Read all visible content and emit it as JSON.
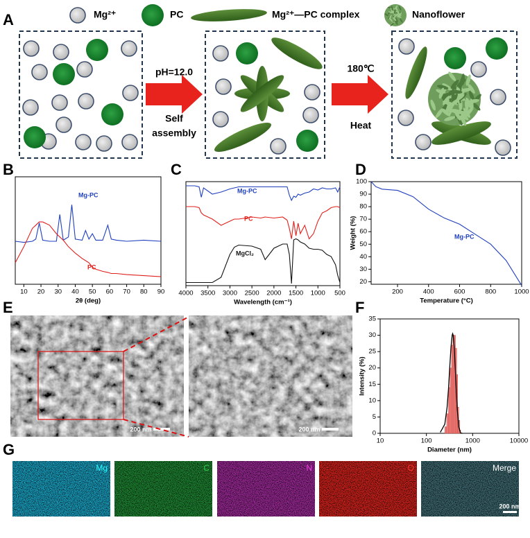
{
  "panels": [
    "A",
    "B",
    "C",
    "D",
    "E",
    "F",
    "G"
  ],
  "schematic": {
    "legend": [
      "Mg²⁺",
      "PC",
      "Mg²⁺—PC complex",
      "Nanoflower"
    ],
    "step1": [
      "pH=12.0",
      "Self",
      "assembly"
    ],
    "step2": [
      "180℃",
      "Heat"
    ]
  },
  "chart_data": [
    {
      "type": "line",
      "xlabel": "2θ (deg)",
      "x": [
        5,
        10,
        15,
        17,
        19,
        21,
        25,
        29,
        31,
        33,
        36,
        38,
        40,
        44,
        46,
        48,
        50,
        52,
        56,
        59,
        61,
        64,
        70,
        80,
        90
      ],
      "xlim": [
        5,
        90
      ],
      "xticks": [
        10,
        20,
        30,
        40,
        50,
        60,
        70,
        80,
        90
      ],
      "ylim": [
        0,
        100
      ],
      "series": [
        {
          "name": "Mg-PC",
          "color": "#1f3fbf",
          "values": [
            40,
            39,
            40,
            42,
            57,
            41,
            40,
            40,
            65,
            41,
            44,
            74,
            42,
            41,
            50,
            42,
            47,
            41,
            41,
            55,
            42,
            41,
            40,
            41,
            40
          ]
        },
        {
          "name": "PC",
          "color": "#e0201b",
          "values": [
            20,
            35,
            52,
            55,
            58,
            58,
            55,
            47,
            44,
            41,
            35,
            32,
            29,
            24,
            22,
            20,
            16,
            14,
            12,
            11,
            10,
            10,
            9,
            8,
            7
          ]
        }
      ]
    },
    {
      "type": "line",
      "xlabel": "Wavelength (cm⁻¹)",
      "x": [
        4000,
        3800,
        3700,
        3650,
        3600,
        3400,
        3200,
        3000,
        2900,
        2800,
        2500,
        2300,
        2200,
        2000,
        1800,
        1700,
        1650,
        1600,
        1550,
        1500,
        1450,
        1400,
        1300,
        1200,
        1100,
        1000,
        900,
        800,
        700,
        600,
        550,
        500
      ],
      "xlim": [
        4000,
        500
      ],
      "xticks": [
        4000,
        3500,
        3000,
        2500,
        2000,
        1500,
        1000,
        500
      ],
      "ylim": [
        0,
        100
      ],
      "series": [
        {
          "name": "Mg-PC",
          "color": "#1f3fbf",
          "values": [
            96,
            96,
            95,
            85,
            94,
            88,
            90,
            93,
            94,
            95,
            95,
            95,
            95,
            95,
            95,
            95,
            87,
            82,
            86,
            85,
            88,
            87,
            89,
            90,
            93,
            92,
            94,
            93,
            93,
            94,
            90,
            95
          ]
        },
        {
          "name": "PC",
          "color": "#e0201b",
          "values": [
            76,
            76,
            75,
            70,
            68,
            64,
            58,
            62,
            64,
            64,
            66,
            65,
            66,
            65,
            66,
            63,
            55,
            45,
            62,
            48,
            60,
            50,
            58,
            45,
            50,
            62,
            70,
            72,
            75,
            76,
            76,
            75
          ]
        },
        {
          "name": "MgCl₂",
          "color": "#111111",
          "values": [
            3,
            3,
            3,
            3,
            3,
            3,
            8,
            30,
            37,
            39,
            38,
            35,
            25,
            36,
            40,
            40,
            30,
            2,
            44,
            45,
            44,
            42,
            40,
            36,
            35,
            35,
            34,
            30,
            28,
            20,
            10,
            3
          ]
        }
      ]
    },
    {
      "type": "line",
      "xlabel": "Temperature (°C)",
      "ylabel": "Weight (%)",
      "x": [
        30,
        60,
        100,
        200,
        300,
        400,
        500,
        600,
        700,
        800,
        900,
        1000
      ],
      "xlim": [
        30,
        1000
      ],
      "xticks": [
        200,
        400,
        600,
        800,
        1000
      ],
      "ylim": [
        18,
        100
      ],
      "yticks": [
        20,
        30,
        40,
        50,
        60,
        70,
        80,
        90,
        100
      ],
      "series": [
        {
          "name": "Mg-PC",
          "color": "#1f3fbf",
          "values": [
            100,
            96,
            94,
            93,
            88,
            78,
            71,
            66,
            58,
            50,
            37,
            17
          ]
        }
      ]
    },
    {
      "type": "histogram",
      "xlabel": "Diameter (nm)",
      "ylabel": "Intensity (%)",
      "log_x": true,
      "xlim": [
        10,
        10000
      ],
      "xticks": [
        10,
        100,
        1000,
        10000
      ],
      "ylim": [
        0,
        35
      ],
      "yticks": [
        0,
        5,
        10,
        15,
        20,
        25,
        30,
        35
      ],
      "bins": [
        250,
        275,
        300,
        325,
        350,
        375,
        400,
        425,
        450,
        475,
        500,
        525,
        550
      ],
      "values": [
        2,
        6,
        14,
        20,
        27,
        30,
        30,
        26,
        18,
        8,
        4,
        1
      ],
      "color": "#f08080",
      "fit": {
        "color": "#000000",
        "x": [
          200,
          250,
          280,
          300,
          320,
          340,
          360,
          370,
          380,
          400,
          420,
          440,
          460,
          500,
          550,
          600
        ],
        "values": [
          0.3,
          2.8,
          8.0,
          13.6,
          20.2,
          26.3,
          30.0,
          30.5,
          30.0,
          26.3,
          20.2,
          13.6,
          8.0,
          1.9,
          0.1,
          0
        ]
      }
    }
  ],
  "sem": {
    "scale_labels": [
      "200 nm",
      "200 nm"
    ]
  },
  "eds": {
    "labels": [
      "Mg",
      "C",
      "N",
      "O",
      "Merge"
    ],
    "scale_label": "200 nm"
  }
}
